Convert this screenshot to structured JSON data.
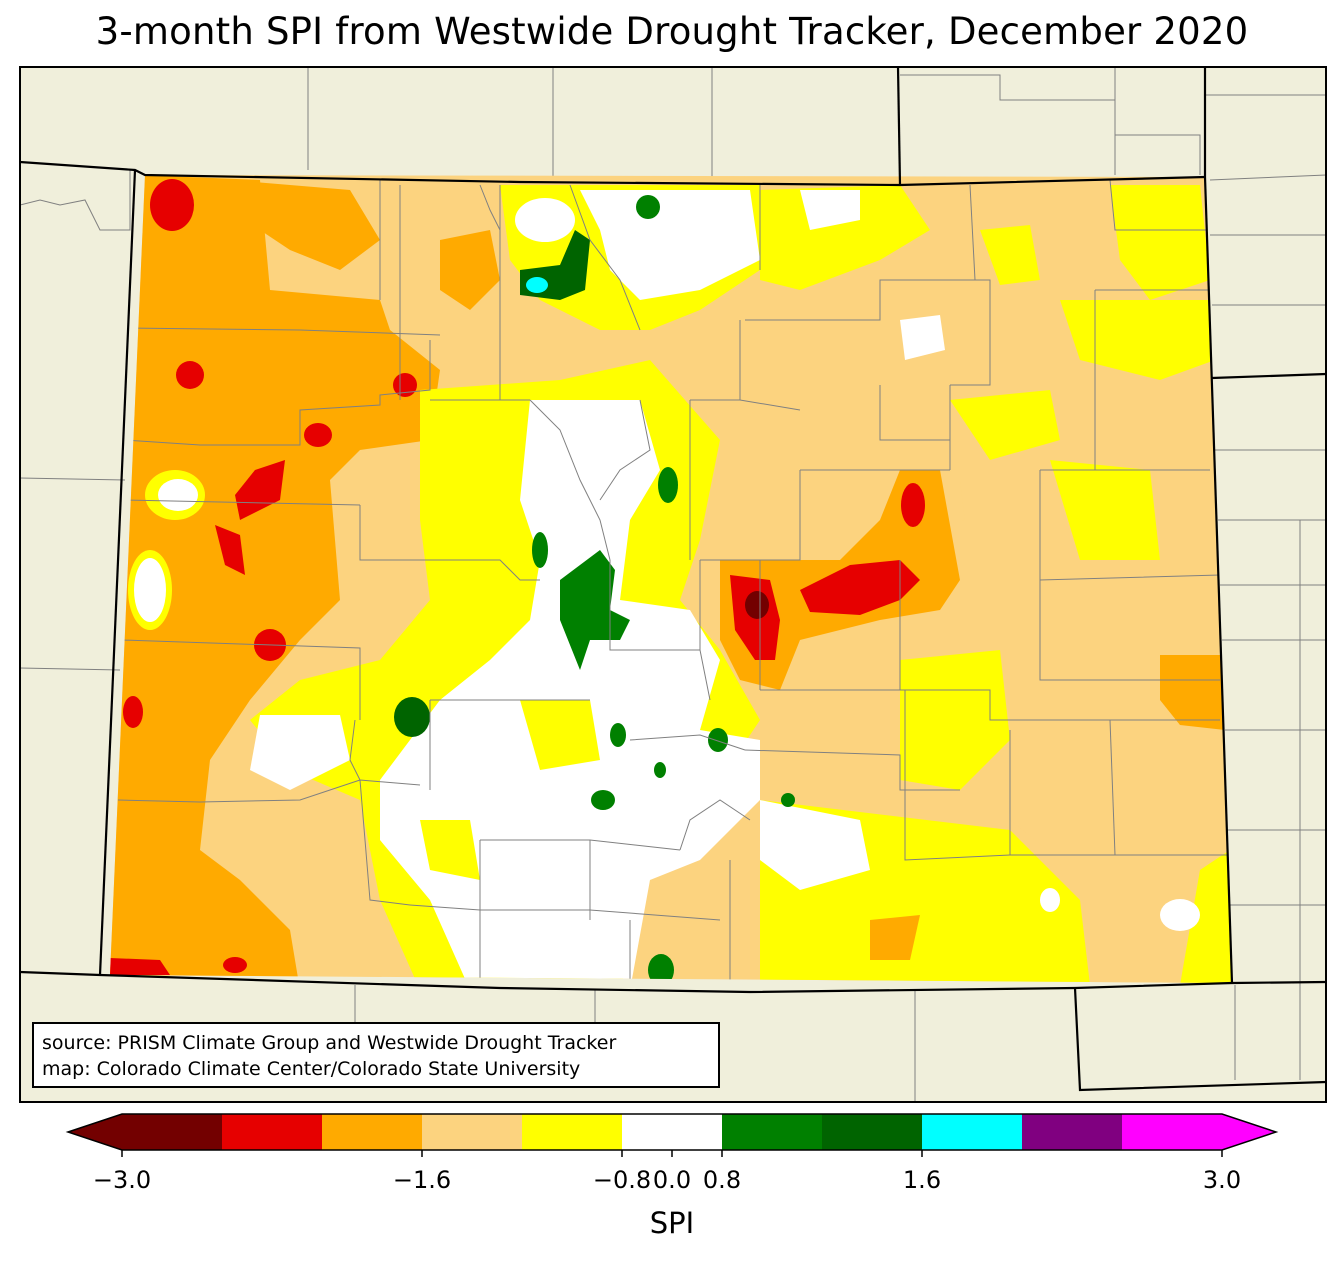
{
  "title": "3-month SPI from Westwide Drought Tracker, December 2020",
  "credit": {
    "line1": "source: PRISM Climate Group and Westwide Drought Tracker",
    "line2": "map: Colorado Climate Center/Colorado State University"
  },
  "colorbar": {
    "label": "SPI",
    "ticks": [
      "−3.0",
      "−1.6",
      "−0.8",
      "0.0",
      "0.8",
      "1.6",
      "3.0"
    ],
    "tick_values": [
      -3.0,
      -1.6,
      -0.8,
      0.0,
      0.8,
      1.6,
      3.0
    ],
    "bins": [
      {
        "from": -3.0,
        "to": -2.6,
        "color": "#730000"
      },
      {
        "from": -2.6,
        "to": -2.0,
        "color": "#e60000"
      },
      {
        "from": -2.0,
        "to": -1.6,
        "color": "#ffaa00"
      },
      {
        "from": -1.6,
        "to": -1.2,
        "color": "#fcd37f"
      },
      {
        "from": -1.2,
        "to": -0.8,
        "color": "#ffff00"
      },
      {
        "from": -0.8,
        "to": 0.8,
        "color": "#ffffff"
      },
      {
        "from": 0.8,
        "to": 1.2,
        "color": "#008000"
      },
      {
        "from": 1.2,
        "to": 1.6,
        "color": "#006400"
      },
      {
        "from": 1.6,
        "to": 2.0,
        "color": "#00ffff"
      },
      {
        "from": 2.0,
        "to": 2.6,
        "color": "#800080"
      },
      {
        "from": 2.6,
        "to": 3.0,
        "color": "#ff00ff"
      }
    ],
    "under_color": "#730000",
    "over_color": "#ff00ff"
  },
  "colors": {
    "land": "#f0efdb",
    "state_border": "#000000",
    "county_border": "#808080"
  }
}
